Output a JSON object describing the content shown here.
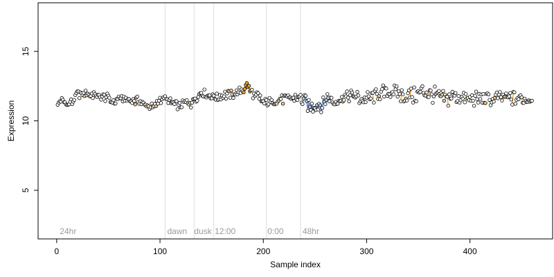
{
  "chart_data": {
    "type": "scatter",
    "title": "",
    "xlabel": "Sample index",
    "ylabel": "Expression",
    "xlim": [
      -18,
      480
    ],
    "ylim": [
      1.5,
      18.5
    ],
    "xticks": [
      0,
      100,
      200,
      300,
      400
    ],
    "yticks": [
      5,
      10,
      15
    ],
    "grid": false,
    "legend": "none",
    "n_points": 460,
    "phase_boundaries": [
      105,
      133,
      152,
      203,
      236
    ],
    "phase_labels": [
      {
        "x": 3,
        "text": "24hr"
      },
      {
        "x": 107,
        "text": "dawn"
      },
      {
        "x": 133,
        "text": "dusk"
      },
      {
        "x": 153,
        "text": "12:00"
      },
      {
        "x": 204,
        "text": "0:00"
      },
      {
        "x": 238,
        "text": "48hr"
      }
    ],
    "highlighted_groups": [
      {
        "color": "#f5a623",
        "x_range": [
          181,
          187
        ]
      },
      {
        "color": "#6f8fd0",
        "x_range": [
          238,
          262
        ]
      }
    ],
    "anchors": [
      [
        1,
        11.2
      ],
      [
        5,
        11.6
      ],
      [
        10,
        11.2
      ],
      [
        15,
        11.4
      ],
      [
        20,
        11.9
      ],
      [
        30,
        12.0
      ],
      [
        40,
        11.8
      ],
      [
        50,
        11.7
      ],
      [
        55,
        11.3
      ],
      [
        60,
        11.6
      ],
      [
        70,
        11.5
      ],
      [
        80,
        11.4
      ],
      [
        90,
        11.1
      ],
      [
        95,
        11.0
      ],
      [
        100,
        11.5
      ],
      [
        105,
        11.7
      ],
      [
        110,
        11.4
      ],
      [
        118,
        11.1
      ],
      [
        125,
        11.3
      ],
      [
        130,
        11.3
      ],
      [
        135,
        11.7
      ],
      [
        140,
        12.0
      ],
      [
        145,
        11.9
      ],
      [
        150,
        11.7
      ],
      [
        155,
        11.7
      ],
      [
        160,
        11.8
      ],
      [
        170,
        11.9
      ],
      [
        175,
        12.0
      ],
      [
        181,
        12.2
      ],
      [
        184,
        12.6
      ],
      [
        188,
        12.1
      ],
      [
        195,
        11.7
      ],
      [
        200,
        11.3
      ],
      [
        205,
        11.4
      ],
      [
        215,
        11.5
      ],
      [
        225,
        11.6
      ],
      [
        232,
        11.7
      ],
      [
        238,
        11.5
      ],
      [
        245,
        11.0
      ],
      [
        252,
        11.2
      ],
      [
        258,
        11.1
      ],
      [
        262,
        11.8
      ],
      [
        268,
        11.3
      ],
      [
        275,
        11.6
      ],
      [
        285,
        11.9
      ],
      [
        295,
        11.5
      ],
      [
        305,
        11.7
      ],
      [
        315,
        12.0
      ],
      [
        325,
        12.1
      ],
      [
        335,
        11.8
      ],
      [
        345,
        11.8
      ],
      [
        355,
        12.1
      ],
      [
        365,
        11.9
      ],
      [
        375,
        11.5
      ],
      [
        385,
        11.8
      ],
      [
        395,
        11.6
      ],
      [
        405,
        11.6
      ],
      [
        415,
        11.5
      ],
      [
        425,
        11.6
      ],
      [
        435,
        11.7
      ],
      [
        445,
        11.6
      ],
      [
        455,
        11.6
      ],
      [
        460,
        11.6
      ]
    ],
    "amplitude": [
      [
        0,
        0.2
      ],
      [
        200,
        0.25
      ],
      [
        230,
        0.3
      ],
      [
        240,
        0.5
      ],
      [
        262,
        0.5
      ],
      [
        270,
        0.35
      ],
      [
        300,
        0.4
      ],
      [
        340,
        0.55
      ],
      [
        380,
        0.5
      ],
      [
        420,
        0.45
      ],
      [
        460,
        0.4
      ]
    ],
    "point_fill": "#ffffff",
    "point_stroke": "#000000",
    "orange": "#f5a623",
    "blue": "#6f8fd0",
    "boundary_color": "#dddddd"
  }
}
